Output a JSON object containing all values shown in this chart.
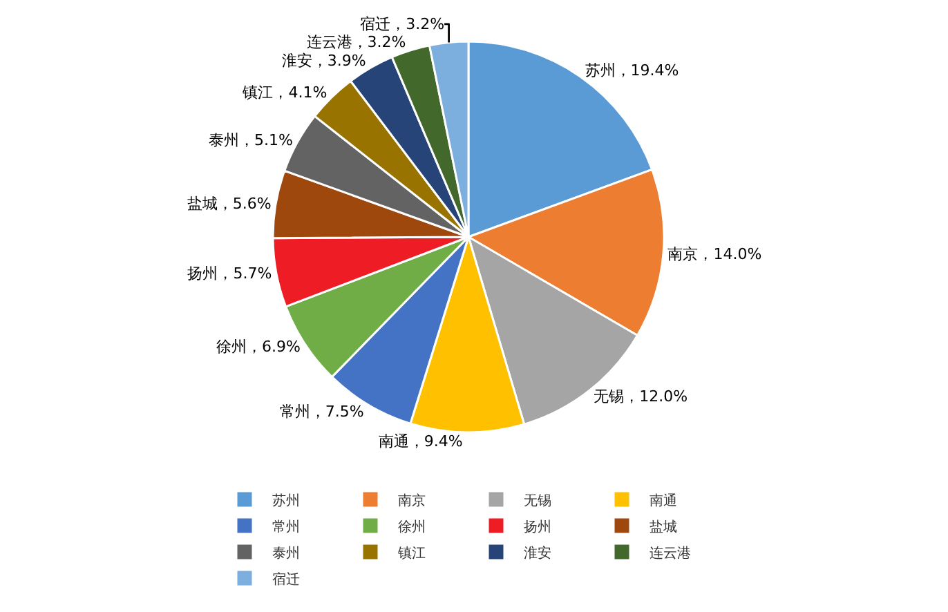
{
  "chart_data": {
    "type": "pie",
    "categories": [
      "苏州",
      "南京",
      "无锡",
      "南通",
      "常州",
      "徐州",
      "扬州",
      "盐城",
      "泰州",
      "镇江",
      "淮安",
      "连云港",
      "宿迁"
    ],
    "values": [
      19.4,
      14.0,
      12.0,
      9.4,
      7.5,
      6.9,
      5.7,
      5.6,
      5.1,
      4.1,
      3.9,
      3.2,
      3.2
    ],
    "colors": [
      "#5b9bd5",
      "#ed7d31",
      "#a5a5a5",
      "#ffc000",
      "#4472c4",
      "#70ad47",
      "#ee1c25",
      "#9e480e",
      "#636363",
      "#997300",
      "#264478",
      "#43682b",
      "#7cafdd"
    ],
    "value_labels": [
      "苏州，19.4%",
      "南京，14.0%",
      "无锡，12.0%",
      "南通，9.4%",
      "常州，7.5%",
      "徐州，6.9%",
      "扬州，5.7%",
      "盐城，5.6%",
      "泰州，5.1%",
      "镇江，4.1%",
      "淮安，3.9%",
      "连云港，3.2%",
      "宿迁，3.2%"
    ],
    "legend": "bottom"
  }
}
